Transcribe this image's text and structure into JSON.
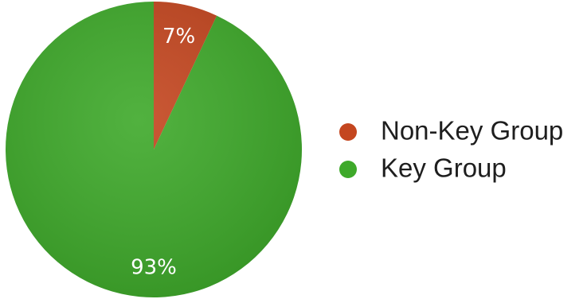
{
  "chart_data": {
    "type": "pie",
    "title": "",
    "start_angle_deg": 0,
    "direction": "clockwise",
    "slices": [
      {
        "name": "Non-Key Group",
        "value": 7,
        "label": "7%",
        "color": "#c4461f"
      },
      {
        "name": "Key Group",
        "value": 93,
        "label": "93%",
        "color": "#3ea92a"
      }
    ],
    "legend": {
      "position": "right",
      "entries": [
        {
          "label": "Non-Key Group",
          "color": "#c4461f"
        },
        {
          "label": "Key Group",
          "color": "#3ea92a"
        }
      ]
    }
  }
}
